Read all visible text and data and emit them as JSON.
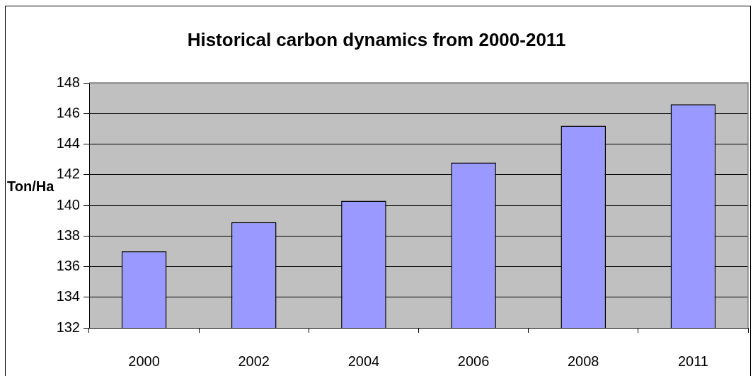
{
  "chart_data": {
    "type": "bar",
    "title": "Historical carbon dynamics from 2000-2011",
    "ylabel": "Ton/Ha",
    "categories": [
      "2000",
      "2002",
      "2004",
      "2006",
      "2008",
      "2011"
    ],
    "values": [
      137.0,
      138.9,
      140.3,
      142.8,
      145.2,
      146.6
    ],
    "color": "#9999ff",
    "ylim": [
      132,
      148
    ],
    "yticks": [
      132,
      134,
      136,
      138,
      140,
      142,
      144,
      146,
      148
    ],
    "grid": "y"
  }
}
